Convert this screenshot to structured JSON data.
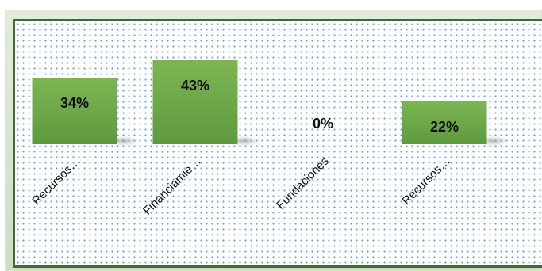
{
  "chart_data": {
    "type": "bar",
    "categories": [
      "Recursos…",
      "Financiamie…",
      "Fundaciones",
      "Recursos…"
    ],
    "values": [
      34,
      43,
      0,
      22
    ],
    "data_labels": [
      "34%",
      "43%",
      "0%",
      "22%"
    ],
    "title": "",
    "xlabel": "",
    "ylabel": "",
    "ylim": [
      0,
      50
    ],
    "grid": false,
    "legend": "none",
    "bar_color": "#6da34a",
    "border_color": "#3f6b36"
  }
}
